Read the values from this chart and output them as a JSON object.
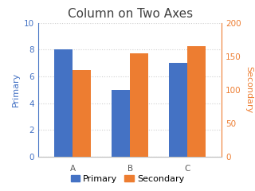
{
  "title": "Column on Two Axes",
  "categories": [
    "A",
    "B",
    "C"
  ],
  "primary_values": [
    8,
    5,
    7
  ],
  "secondary_values": [
    130,
    155,
    165
  ],
  "primary_color": "#4472C4",
  "secondary_color": "#ED7D31",
  "primary_label": "Primary",
  "secondary_label": "Secondary",
  "primary_ylim": [
    0,
    10
  ],
  "primary_yticks": [
    0,
    2,
    4,
    6,
    8,
    10
  ],
  "secondary_ylim": [
    0,
    200
  ],
  "secondary_yticks": [
    0,
    50,
    100,
    150,
    200
  ],
  "primary_axis_color": "#4472C4",
  "secondary_axis_color": "#ED7D31",
  "title_fontsize": 11,
  "label_fontsize": 8,
  "tick_fontsize": 7.5,
  "legend_fontsize": 8,
  "background_color": "#FFFFFF",
  "grid_color": "#D0D0D0",
  "bar_width": 0.32
}
